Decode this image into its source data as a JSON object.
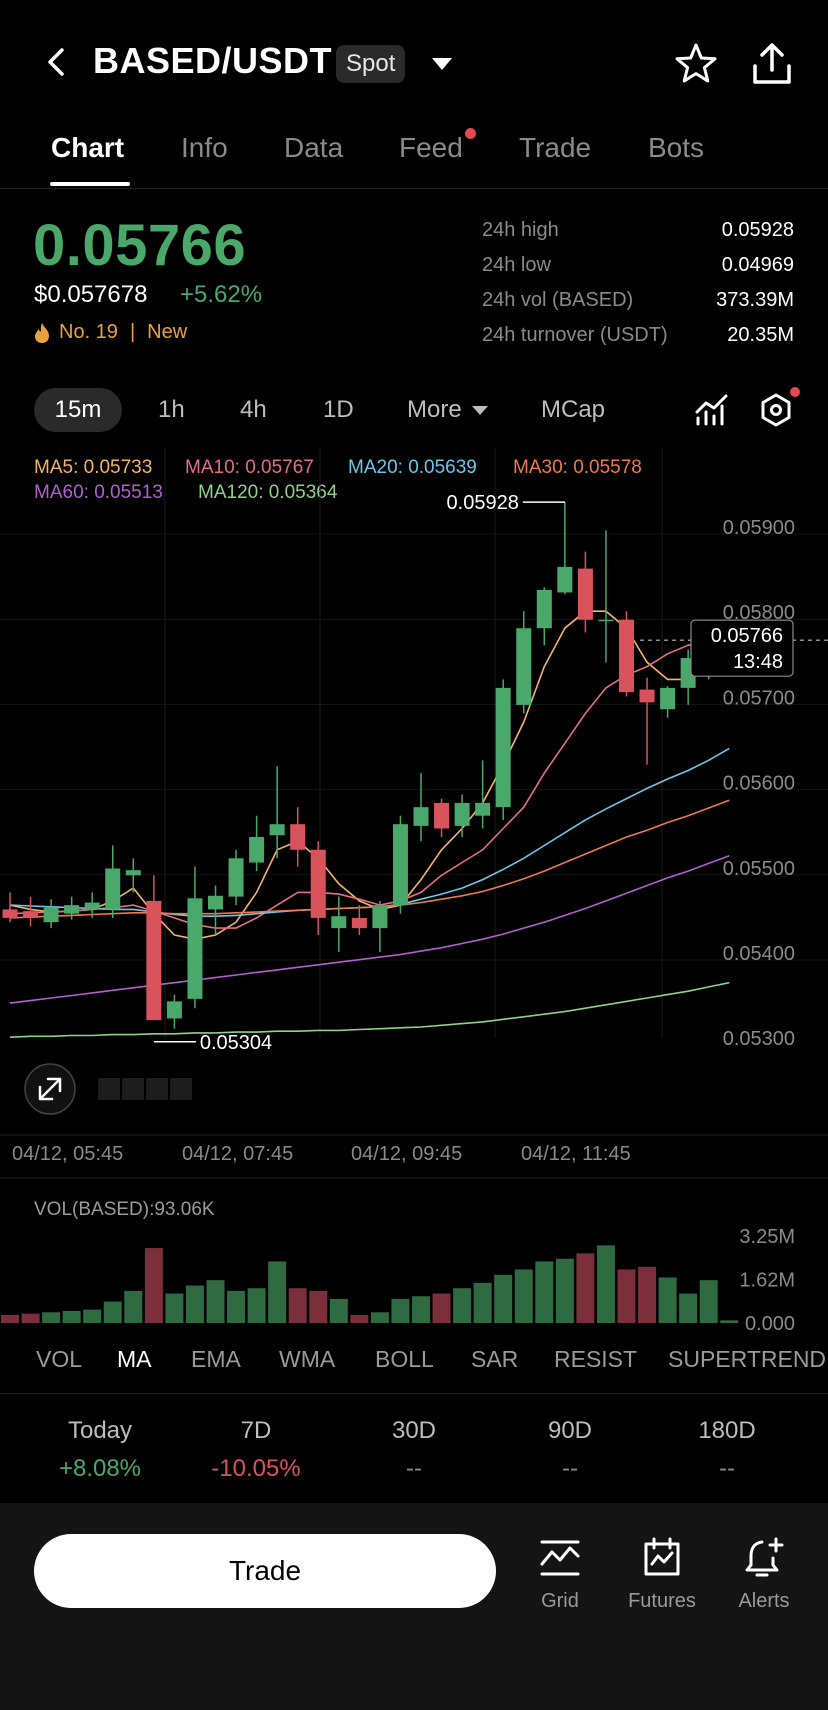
{
  "header": {
    "pair": "BASED/USDT",
    "badge": "Spot",
    "icons": [
      "chevron-left-icon",
      "chevron-down-icon",
      "star-icon",
      "share-icon"
    ]
  },
  "tabs": [
    {
      "label": "Chart",
      "active": true
    },
    {
      "label": "Info"
    },
    {
      "label": "Data"
    },
    {
      "label": "Feed",
      "notification": true
    },
    {
      "label": "Trade"
    },
    {
      "label": "Bots"
    }
  ],
  "price": {
    "last": "0.05766",
    "usd": "$0.057678",
    "change": "+5.62%",
    "rank": "No. 19",
    "separator": "|",
    "tag": "New"
  },
  "stats": [
    {
      "label": "24h high",
      "value": "0.05928"
    },
    {
      "label": "24h low",
      "value": "0.04969"
    },
    {
      "label": "24h vol (BASED)",
      "value": "373.39M"
    },
    {
      "label": "24h turnover (USDT)",
      "value": "20.35M"
    }
  ],
  "intervals": {
    "items": [
      "15m",
      "1h",
      "4h",
      "1D",
      "More",
      "MCap"
    ],
    "selected": "15m"
  },
  "ma_legend": [
    {
      "label": "MA5: 0.05733",
      "color": "#f2b36a"
    },
    {
      "label": "MA10: 0.05767",
      "color": "#e2707f"
    },
    {
      "label": "MA20: 0.05639",
      "color": "#6ec6e6"
    },
    {
      "label": "MA30: 0.05578",
      "color": "#ec7a4e"
    },
    {
      "label": "MA60: 0.05513",
      "color": "#b15fd3"
    },
    {
      "label": "MA120: 0.05364",
      "color": "#8fd18a"
    }
  ],
  "chart_data": {
    "type": "candlestick",
    "y_ticks": [
      "0.05900",
      "0.05800",
      "0.05700",
      "0.05600",
      "0.05500",
      "0.05400",
      "0.05300"
    ],
    "ylim": [
      0.0527,
      0.0595
    ],
    "x_ticks": [
      "04/12, 05:45",
      "04/12, 07:45",
      "04/12, 09:45",
      "04/12, 11:45"
    ],
    "high_marker": "0.05928",
    "low_marker": "0.05304",
    "current_price": "0.05766",
    "countdown": "13:48",
    "candles": [
      {
        "o": 0.0545,
        "h": 0.0547,
        "l": 0.05435,
        "c": 0.0544
      },
      {
        "o": 0.05448,
        "h": 0.05465,
        "l": 0.0543,
        "c": 0.0544
      },
      {
        "o": 0.05435,
        "h": 0.05462,
        "l": 0.05428,
        "c": 0.05452
      },
      {
        "o": 0.05445,
        "h": 0.05465,
        "l": 0.05438,
        "c": 0.05455
      },
      {
        "o": 0.0545,
        "h": 0.0547,
        "l": 0.0544,
        "c": 0.05458
      },
      {
        "o": 0.0545,
        "h": 0.05525,
        "l": 0.0544,
        "c": 0.05498
      },
      {
        "o": 0.0549,
        "h": 0.0551,
        "l": 0.0547,
        "c": 0.05496
      },
      {
        "o": 0.0546,
        "h": 0.0549,
        "l": 0.0532,
        "c": 0.0532
      },
      {
        "o": 0.05322,
        "h": 0.0535,
        "l": 0.0531,
        "c": 0.05342
      },
      {
        "o": 0.05345,
        "h": 0.055,
        "l": 0.05334,
        "c": 0.05463
      },
      {
        "o": 0.0545,
        "h": 0.05478,
        "l": 0.0542,
        "c": 0.05466
      },
      {
        "o": 0.05465,
        "h": 0.0552,
        "l": 0.05455,
        "c": 0.0551
      },
      {
        "o": 0.05505,
        "h": 0.0556,
        "l": 0.05495,
        "c": 0.05535
      },
      {
        "o": 0.05537,
        "h": 0.05618,
        "l": 0.0551,
        "c": 0.0555
      },
      {
        "o": 0.0555,
        "h": 0.0557,
        "l": 0.055,
        "c": 0.0552
      },
      {
        "o": 0.0552,
        "h": 0.0553,
        "l": 0.0542,
        "c": 0.0544
      },
      {
        "o": 0.05428,
        "h": 0.05465,
        "l": 0.054,
        "c": 0.05442
      },
      {
        "o": 0.0544,
        "h": 0.05455,
        "l": 0.0542,
        "c": 0.05428
      },
      {
        "o": 0.05428,
        "h": 0.0546,
        "l": 0.054,
        "c": 0.05455
      },
      {
        "o": 0.05455,
        "h": 0.0556,
        "l": 0.05445,
        "c": 0.0555
      },
      {
        "o": 0.05548,
        "h": 0.0561,
        "l": 0.0553,
        "c": 0.0557
      },
      {
        "o": 0.05575,
        "h": 0.0558,
        "l": 0.05535,
        "c": 0.05545
      },
      {
        "o": 0.05548,
        "h": 0.05585,
        "l": 0.05535,
        "c": 0.05575
      },
      {
        "o": 0.0556,
        "h": 0.05625,
        "l": 0.05545,
        "c": 0.05575
      },
      {
        "o": 0.0557,
        "h": 0.0572,
        "l": 0.05555,
        "c": 0.0571
      },
      {
        "o": 0.0569,
        "h": 0.058,
        "l": 0.0568,
        "c": 0.0578
      },
      {
        "o": 0.0578,
        "h": 0.05828,
        "l": 0.0576,
        "c": 0.05825
      },
      {
        "o": 0.05822,
        "h": 0.05928,
        "l": 0.0582,
        "c": 0.05852
      },
      {
        "o": 0.0585,
        "h": 0.0587,
        "l": 0.05775,
        "c": 0.0579
      },
      {
        "o": 0.0579,
        "h": 0.05895,
        "l": 0.0574,
        "c": 0.0579
      },
      {
        "o": 0.0579,
        "h": 0.058,
        "l": 0.057,
        "c": 0.05705
      },
      {
        "o": 0.05708,
        "h": 0.05722,
        "l": 0.0562,
        "c": 0.05693
      },
      {
        "o": 0.05685,
        "h": 0.05712,
        "l": 0.05675,
        "c": 0.0571
      },
      {
        "o": 0.0571,
        "h": 0.05755,
        "l": 0.0569,
        "c": 0.05745
      },
      {
        "o": 0.0574,
        "h": 0.0579,
        "l": 0.0572,
        "c": 0.05762
      },
      {
        "o": 0.05762,
        "h": 0.05775,
        "l": 0.0576,
        "c": 0.05766
      }
    ],
    "ma_series": {
      "MA5": [
        0.05455,
        0.0545,
        0.05447,
        0.05448,
        0.0545,
        0.0546,
        0.05475,
        0.05445,
        0.0542,
        0.05415,
        0.0542,
        0.05435,
        0.0547,
        0.0552,
        0.0553,
        0.0551,
        0.0548,
        0.0546,
        0.0545,
        0.05455,
        0.05485,
        0.0552,
        0.05545,
        0.05575,
        0.0562,
        0.0567,
        0.05735,
        0.0578,
        0.058,
        0.058,
        0.0578,
        0.0574,
        0.0572,
        0.0572,
        0.05735,
        0.05733
      ],
      "MA10": [
        0.05445,
        0.05446,
        0.05447,
        0.05448,
        0.0545,
        0.05452,
        0.05455,
        0.05448,
        0.0544,
        0.05432,
        0.05428,
        0.05428,
        0.0544,
        0.05455,
        0.0547,
        0.0547,
        0.05468,
        0.05462,
        0.05455,
        0.0546,
        0.0547,
        0.0549,
        0.05505,
        0.0552,
        0.05545,
        0.0557,
        0.0561,
        0.05645,
        0.0568,
        0.0571,
        0.05725,
        0.05735,
        0.0575,
        0.0576,
        0.05765,
        0.05767
      ],
      "MA20": [
        0.05455,
        0.05454,
        0.05453,
        0.05452,
        0.05451,
        0.0545,
        0.0545,
        0.05447,
        0.05444,
        0.05442,
        0.05442,
        0.05443,
        0.05445,
        0.05447,
        0.05449,
        0.0545,
        0.05451,
        0.05452,
        0.05453,
        0.05456,
        0.05462,
        0.05468,
        0.05475,
        0.05485,
        0.05497,
        0.0551,
        0.05525,
        0.0554,
        0.05555,
        0.05568,
        0.0558,
        0.05592,
        0.05603,
        0.05613,
        0.05625,
        0.05639
      ],
      "MA30": [
        0.0544,
        0.05441,
        0.05442,
        0.05443,
        0.05444,
        0.05445,
        0.05446,
        0.05446,
        0.05445,
        0.05445,
        0.05445,
        0.05446,
        0.05447,
        0.05448,
        0.05449,
        0.0545,
        0.05451,
        0.05452,
        0.05453,
        0.05455,
        0.05458,
        0.05462,
        0.05466,
        0.05471,
        0.05478,
        0.05486,
        0.05495,
        0.05505,
        0.05515,
        0.05525,
        0.05535,
        0.05543,
        0.05552,
        0.0556,
        0.05569,
        0.05578
      ],
      "MA60": [
        0.0534,
        0.05343,
        0.05346,
        0.05349,
        0.05352,
        0.05355,
        0.05358,
        0.05361,
        0.05364,
        0.05367,
        0.0537,
        0.05373,
        0.05376,
        0.05379,
        0.05382,
        0.05385,
        0.05388,
        0.05391,
        0.05394,
        0.05397,
        0.05401,
        0.05405,
        0.0541,
        0.05415,
        0.05421,
        0.05428,
        0.05435,
        0.05443,
        0.05451,
        0.0546,
        0.05469,
        0.05478,
        0.05487,
        0.05495,
        0.05504,
        0.05513
      ],
      "MA120": [
        0.053,
        0.05301,
        0.05301,
        0.05302,
        0.05302,
        0.05303,
        0.05303,
        0.05304,
        0.05304,
        0.05305,
        0.05305,
        0.05306,
        0.05306,
        0.05307,
        0.05307,
        0.05308,
        0.05308,
        0.05309,
        0.0531,
        0.05311,
        0.05312,
        0.05314,
        0.05316,
        0.05318,
        0.05321,
        0.05324,
        0.05327,
        0.0533,
        0.05334,
        0.05338,
        0.05342,
        0.05346,
        0.0535,
        0.05354,
        0.05359,
        0.05364
      ]
    },
    "volume": {
      "label": "VOL(BASED):93.06K",
      "y_ticks": [
        "3.25M",
        "1.62M",
        "0.000"
      ],
      "max": 3.25,
      "values": [
        0.3,
        0.35,
        0.4,
        0.45,
        0.5,
        0.8,
        1.2,
        2.8,
        1.1,
        1.4,
        1.6,
        1.2,
        1.3,
        2.3,
        1.3,
        1.2,
        0.9,
        0.3,
        0.4,
        0.9,
        1.0,
        1.1,
        1.3,
        1.5,
        1.8,
        2.0,
        2.3,
        2.4,
        2.6,
        2.9,
        2.0,
        2.1,
        1.7,
        1.1,
        1.6,
        0.1
      ]
    }
  },
  "indicators": {
    "items": [
      "VOL",
      "MA",
      "EMA",
      "WMA",
      "BOLL",
      "SAR",
      "RESIST",
      "SUPERTREND"
    ],
    "active": "MA"
  },
  "performance": [
    {
      "label": "Today",
      "value": "+8.08%"
    },
    {
      "label": "7D",
      "value": "-10.05%"
    },
    {
      "label": "30D",
      "value": "--"
    },
    {
      "label": "90D",
      "value": "--"
    },
    {
      "label": "180D",
      "value": "--"
    }
  ],
  "bottom_bar": {
    "trade_label": "Trade",
    "items": [
      {
        "label": "Grid",
        "icon": "grid-icon"
      },
      {
        "label": "Futures",
        "icon": "futures-icon"
      },
      {
        "label": "Alerts",
        "icon": "alert-bell-icon"
      }
    ]
  },
  "colors": {
    "up": "#4aa96a",
    "down": "#d9535c",
    "accent_orange": "#e9a13b",
    "notification": "#e5484d"
  }
}
